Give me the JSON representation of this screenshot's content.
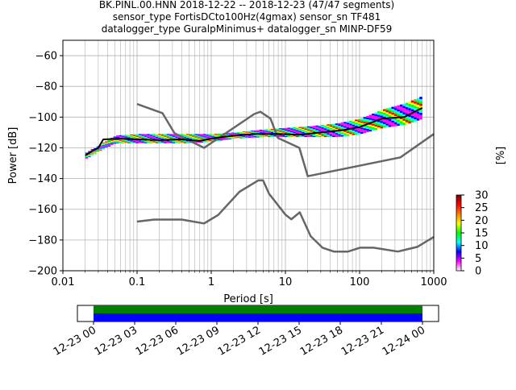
{
  "title": {
    "line1": "BK.PINL.00.HNN   2018-12-22 -- 2018-12-23  (47/47 segments)",
    "line2": "sensor_type FortisDCto100Hz(4gmax) sensor_sn TF481",
    "line3": "datalogger_type GuralpMinimus+ datalogger_sn MINP-DF59"
  },
  "chart_data": [
    {
      "type": "line",
      "xlabel": "Period [s]",
      "ylabel": "Power [dB]",
      "xscale": "log",
      "xlim": [
        0.01,
        1000
      ],
      "ylim": [
        -200,
        -50
      ],
      "x_ticks": [
        {
          "value": 0.01,
          "label": "0.01"
        },
        {
          "value": 0.1,
          "label": "0.1"
        },
        {
          "value": 1,
          "label": "1"
        },
        {
          "value": 10,
          "label": "10"
        },
        {
          "value": 100,
          "label": "100"
        },
        {
          "value": 1000,
          "label": "1000"
        }
      ],
      "y_ticks": [
        -60,
        -80,
        -100,
        -120,
        -140,
        -160,
        -180,
        -200
      ],
      "grid": true,
      "series": [
        {
          "role": "model-high",
          "color": "#666666",
          "x": [
            0.1,
            0.22,
            0.32,
            0.8,
            3.8,
            4.6,
            6.3,
            7.9,
            15.4,
            20,
            354.8,
            1000
          ],
          "y": [
            -91.5,
            -97.4,
            -110.5,
            -120,
            -98,
            -96.5,
            -101,
            -113.5,
            -120,
            -138.5,
            -126.2,
            -111
          ]
        },
        {
          "role": "model-low",
          "color": "#666666",
          "x": [
            0.1,
            0.17,
            0.4,
            0.8,
            1.24,
            2.4,
            4.3,
            5.0,
            6.0,
            10.0,
            12.0,
            15.6,
            21.9,
            31.6,
            45,
            70,
            101,
            154,
            328,
            600,
            1000
          ],
          "y": [
            -168,
            -166.7,
            -166.7,
            -169.2,
            -163.7,
            -148.6,
            -141.2,
            -141.2,
            -149.8,
            -163.5,
            -166.5,
            -162,
            -177.5,
            -185,
            -187.5,
            -187.5,
            -185,
            -185,
            -187.5,
            -184.5,
            -178
          ]
        },
        {
          "role": "mode",
          "color": "#000000",
          "x": [
            0.02,
            0.025,
            0.03,
            0.035,
            0.06,
            0.1,
            0.2,
            0.4,
            0.7,
            1,
            2,
            4,
            8,
            15,
            30,
            60,
            100,
            200,
            400,
            700
          ],
          "y": [
            -125,
            -122,
            -120,
            -114.5,
            -114,
            -114.5,
            -115,
            -114.5,
            -115.5,
            -114,
            -112,
            -111,
            -111,
            -111.5,
            -110,
            -108.5,
            -106.5,
            -101,
            -100,
            -94
          ]
        }
      ],
      "pdf_band": {
        "x": [
          0.02,
          0.03,
          0.05,
          0.1,
          0.2,
          0.5,
          1,
          2,
          5,
          10,
          20,
          50,
          100,
          200,
          400,
          700
        ],
        "lower": [
          -127,
          -122,
          -117,
          -117,
          -117,
          -117,
          -116,
          -114,
          -113,
          -113,
          -113,
          -113,
          -111,
          -107,
          -105,
          -101
        ],
        "upper": [
          -123,
          -118,
          -112,
          -111,
          -111,
          -111,
          -111,
          -110,
          -108,
          -107,
          -106,
          -104,
          -101,
          -95,
          -91,
          -86
        ]
      }
    },
    {
      "type": "colorbar",
      "label": "[%]",
      "min": 0,
      "max": 30,
      "ticks": [
        0,
        5,
        10,
        15,
        20,
        25,
        30
      ],
      "colors": [
        "#ffffff",
        "#ff00ff",
        "#0000ff",
        "#00ffff",
        "#00ff00",
        "#ffff00",
        "#ff8000",
        "#ff0000",
        "#800000"
      ]
    },
    {
      "type": "timeline",
      "segments": [
        {
          "color": "#008000"
        },
        {
          "color": "#0000ff"
        }
      ],
      "tick_labels": [
        "12-23 00",
        "12-23 03",
        "12-23 06",
        "12-23 09",
        "12-23 12",
        "12-23 15",
        "12-23 18",
        "12-23 21",
        "12-24 00"
      ]
    }
  ]
}
